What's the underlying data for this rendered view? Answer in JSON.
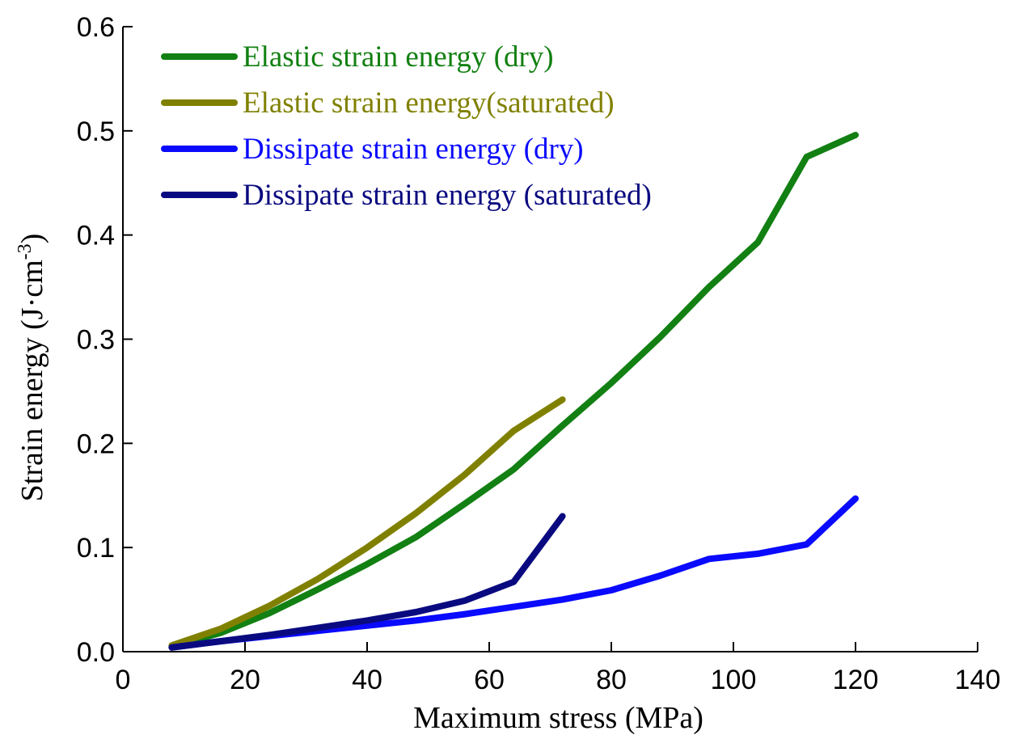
{
  "chart_data": {
    "type": "line",
    "title": "",
    "xlabel": "Maximum stress (MPa)",
    "ylabel_main": "Strain energy (J·cm",
    "ylabel_sup": "-3",
    "ylabel_close": ")",
    "xlim": [
      0,
      140
    ],
    "ylim": [
      0,
      0.6
    ],
    "xticks": [
      0,
      20,
      40,
      60,
      80,
      100,
      120,
      140
    ],
    "xtick_labels": [
      "0",
      "20",
      "40",
      "60",
      "80",
      "100",
      "120",
      "140"
    ],
    "yticks": [
      0.0,
      0.1,
      0.2,
      0.3,
      0.4,
      0.5,
      0.6
    ],
    "ytick_labels": [
      "0.0",
      "0.1",
      "0.2",
      "0.3",
      "0.4",
      "0.5",
      "0.6"
    ],
    "grid": false,
    "legend_position": "top-left",
    "series": [
      {
        "name": "Elastic strain energy (dry)",
        "color": "#128012",
        "x": [
          8,
          16,
          24,
          32,
          40,
          48,
          56,
          64,
          72,
          80,
          88,
          96,
          104,
          112,
          120
        ],
        "y": [
          0.005,
          0.018,
          0.037,
          0.06,
          0.084,
          0.11,
          0.142,
          0.175,
          0.217,
          0.258,
          0.302,
          0.35,
          0.393,
          0.475,
          0.496
        ]
      },
      {
        "name": "Elastic strain energy(saturated)",
        "color": "#808000",
        "x": [
          8,
          16,
          24,
          32,
          40,
          48,
          56,
          64,
          72
        ],
        "y": [
          0.006,
          0.022,
          0.044,
          0.07,
          0.1,
          0.133,
          0.17,
          0.212,
          0.242
        ]
      },
      {
        "name": "Dissipate strain energy (dry)",
        "color": "#0a0aff",
        "x": [
          8,
          16,
          24,
          32,
          40,
          48,
          56,
          64,
          72,
          80,
          88,
          96,
          104,
          112,
          120
        ],
        "y": [
          0.004,
          0.01,
          0.015,
          0.02,
          0.025,
          0.03,
          0.036,
          0.043,
          0.05,
          0.059,
          0.073,
          0.089,
          0.094,
          0.103,
          0.147
        ]
      },
      {
        "name": "Dissipate strain energy (saturated)",
        "color": "#0a0a80",
        "x": [
          8,
          16,
          24,
          32,
          40,
          48,
          56,
          64,
          72
        ],
        "y": [
          0.004,
          0.01,
          0.016,
          0.023,
          0.03,
          0.038,
          0.049,
          0.067,
          0.13
        ]
      }
    ]
  }
}
